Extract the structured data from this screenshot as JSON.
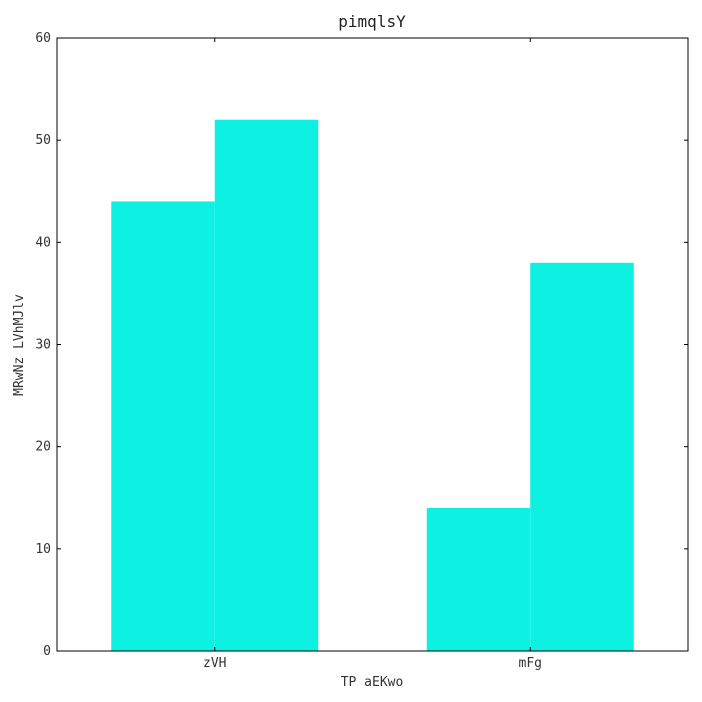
{
  "chart_data": {
    "type": "bar",
    "title": "pimqlsY",
    "xlabel": "TP aEKwo",
    "ylabel": "MRwNz LVhMJlv",
    "categories": [
      "zVH",
      "mFg"
    ],
    "series": [
      {
        "values": [
          44,
          14
        ]
      },
      {
        "values": [
          52,
          38
        ]
      }
    ],
    "ylim": [
      0,
      60
    ],
    "yticks": [
      0,
      10,
      20,
      30,
      40,
      50,
      60
    ],
    "grid": false,
    "legend": "none",
    "colors": {
      "bar": "#00f0e0",
      "axis": "#000000",
      "text": "#333333"
    }
  }
}
